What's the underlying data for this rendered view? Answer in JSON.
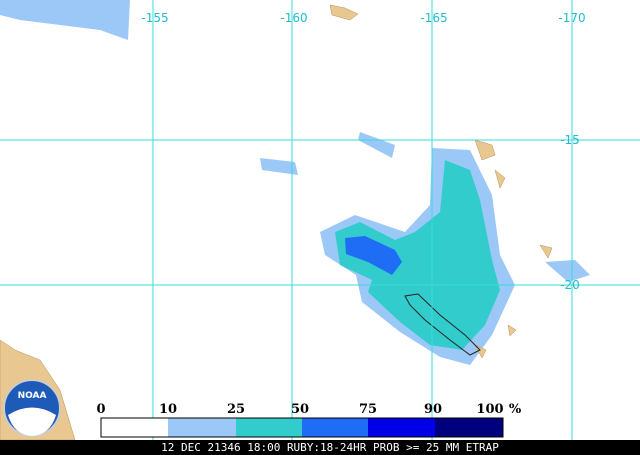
{
  "map": {
    "longitudes": [
      "-155",
      "-160",
      "-165",
      "-170"
    ],
    "latitudes": [
      "-15",
      "-20"
    ],
    "logo": "NOAA"
  },
  "legend": {
    "labels": [
      "0",
      "10",
      "25",
      "50",
      "75",
      "90",
      "100"
    ],
    "unit": "%",
    "colors": [
      "#ffffff",
      "#9cc8f8",
      "#33cccc",
      "#1f6cf5",
      "#0000e6",
      "#00007f"
    ]
  },
  "caption": "12 DEC 21346 18:00 RUBY:18-24HR PROB >= 25 MM ETRAP"
}
